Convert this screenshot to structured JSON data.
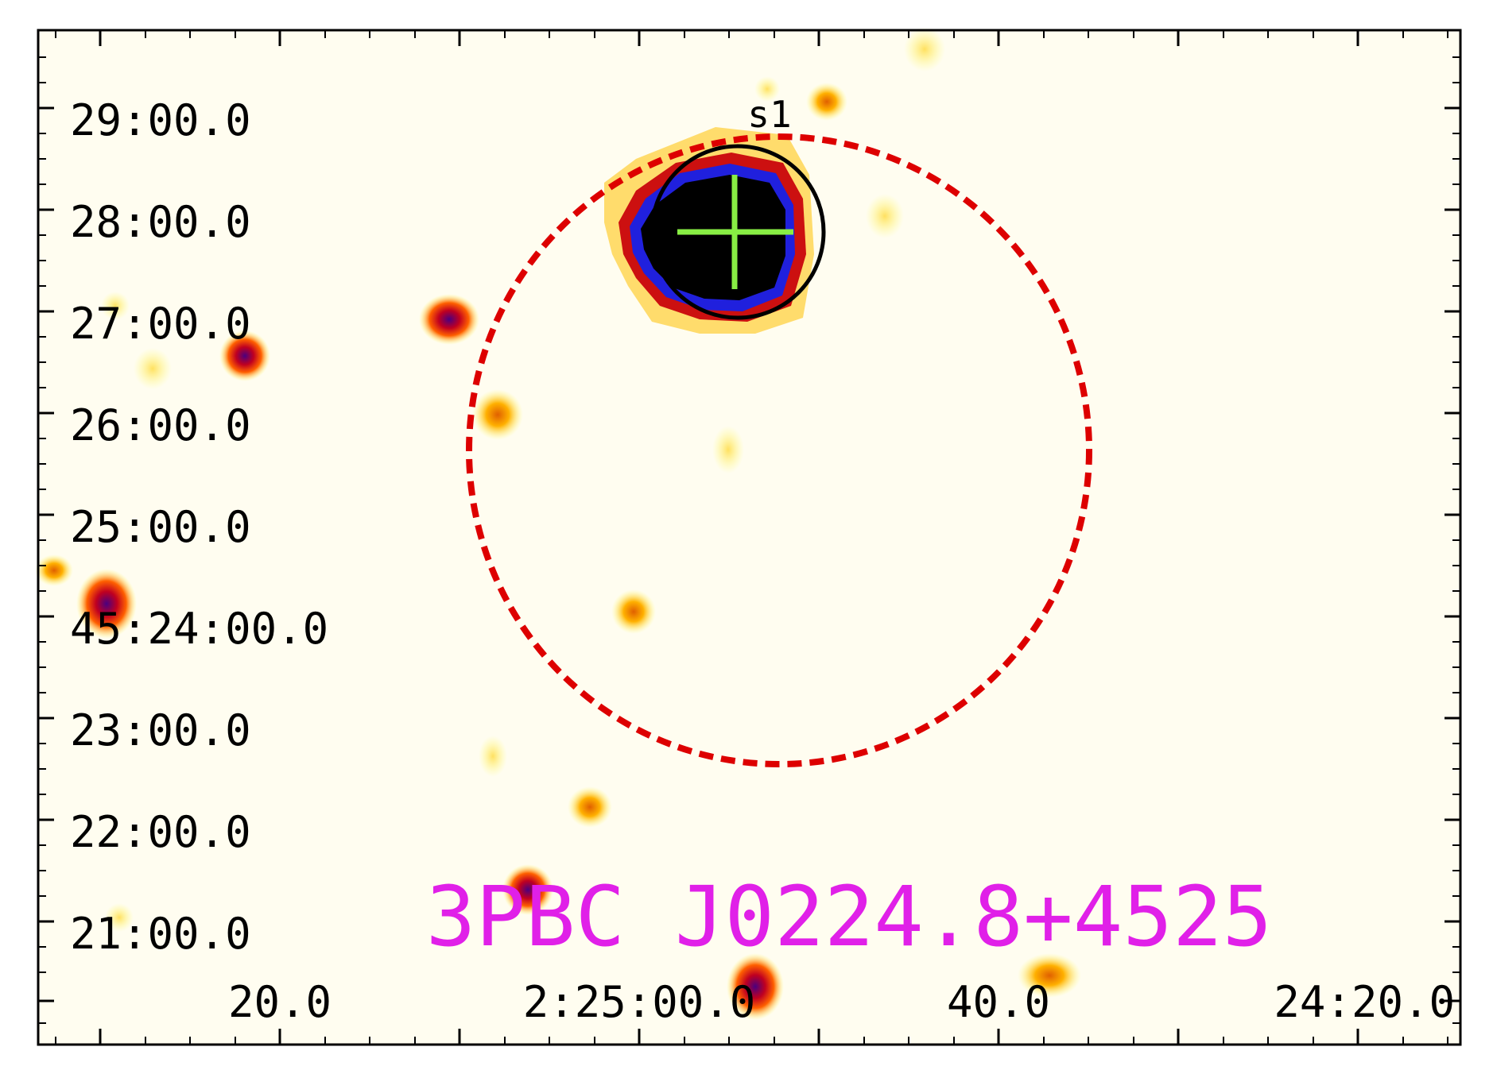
{
  "image": {
    "title": "3PBC J0224.8+4525",
    "source_label": "s1",
    "colors": {
      "background": "#fffdf0",
      "frame": "#000000",
      "title": "#e020e8",
      "circle": "#000000",
      "dashed_circle": "#dd0000",
      "cross": "#88ee44"
    },
    "y_axis_labels": [
      "29:00.0",
      "28:00.0",
      "27:00.0",
      "26:00.0",
      "25:00.0",
      "45:24:00.0",
      "23:00.0",
      "22:00.0",
      "21:00.0"
    ],
    "x_axis_labels": [
      "20.0",
      "2:25:00.0",
      "40.0",
      "24:20.0"
    ]
  }
}
